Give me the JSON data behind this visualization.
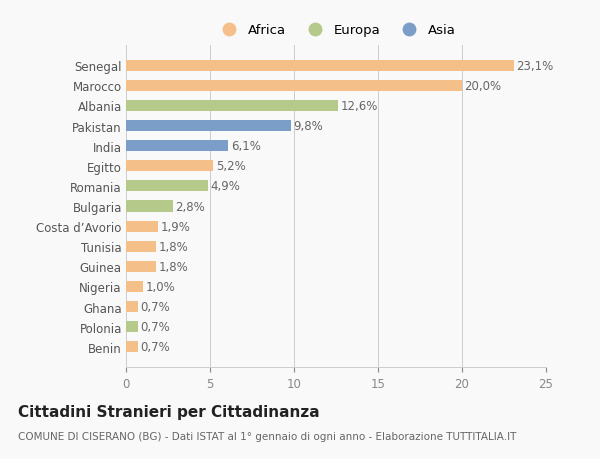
{
  "categories": [
    "Benin",
    "Polonia",
    "Ghana",
    "Nigeria",
    "Guinea",
    "Tunisia",
    "Costa d’Avorio",
    "Bulgaria",
    "Romania",
    "Egitto",
    "India",
    "Pakistan",
    "Albania",
    "Marocco",
    "Senegal"
  ],
  "values": [
    0.7,
    0.7,
    0.7,
    1.0,
    1.8,
    1.8,
    1.9,
    2.8,
    4.9,
    5.2,
    6.1,
    9.8,
    12.6,
    20.0,
    23.1
  ],
  "labels": [
    "0,7%",
    "0,7%",
    "0,7%",
    "1,0%",
    "1,8%",
    "1,8%",
    "1,9%",
    "2,8%",
    "4,9%",
    "5,2%",
    "6,1%",
    "9,8%",
    "12,6%",
    "20,0%",
    "23,1%"
  ],
  "colors": [
    "#f5bf8a",
    "#b5c98a",
    "#f5bf8a",
    "#f5bf8a",
    "#f5bf8a",
    "#f5bf8a",
    "#f5bf8a",
    "#b5c98a",
    "#b5c98a",
    "#f5bf8a",
    "#7b9ec9",
    "#7b9ec9",
    "#b5c98a",
    "#f5bf8a",
    "#f5bf8a"
  ],
  "legend_labels": [
    "Africa",
    "Europa",
    "Asia"
  ],
  "legend_colors": [
    "#f5bf8a",
    "#b5c98a",
    "#7b9ec9"
  ],
  "title": "Cittadini Stranieri per Cittadinanza",
  "subtitle": "COMUNE DI CISERANO (BG) - Dati ISTAT al 1° gennaio di ogni anno - Elaborazione TUTTITALIA.IT",
  "xlim": [
    0,
    25
  ],
  "xticks": [
    0,
    5,
    10,
    15,
    20,
    25
  ],
  "background_color": "#f9f9f9",
  "bar_height": 0.55,
  "label_fontsize": 8.5,
  "title_fontsize": 11,
  "subtitle_fontsize": 7.5,
  "ytick_fontsize": 8.5,
  "xtick_fontsize": 8.5,
  "legend_fontsize": 9.5
}
